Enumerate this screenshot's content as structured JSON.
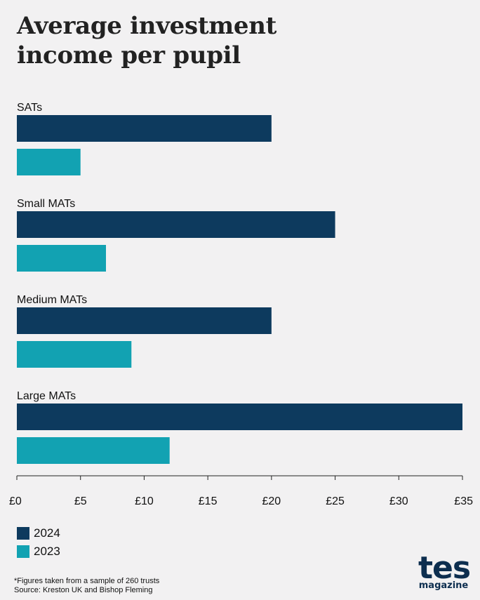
{
  "chart_data": {
    "type": "bar",
    "orientation": "horizontal",
    "title": "Average investment income per pupil",
    "title_lines": [
      "Average investment",
      "income per pupil"
    ],
    "categories": [
      "SATs",
      "Small MATs",
      "Medium MATs",
      "Large MATs"
    ],
    "series": [
      {
        "name": "2024",
        "values": [
          20,
          25,
          20,
          35
        ],
        "color": "#0d3a5e"
      },
      {
        "name": "2023",
        "values": [
          5,
          7,
          9,
          12
        ],
        "color": "#12a2b2"
      }
    ],
    "xlim": [
      0,
      35
    ],
    "ticks": [
      0,
      5,
      10,
      15,
      20,
      25,
      30,
      35
    ],
    "tick_labels": [
      "£0",
      "£5",
      "£10",
      "£15",
      "£20",
      "£25",
      "£30",
      "£35"
    ],
    "xlabel": "",
    "ylabel": "",
    "grid": false,
    "legend_position": "bottom-left"
  },
  "footnote": {
    "line1": "*Figures taken from a sample of 260 trusts",
    "line2": "Source: Kreston UK and Bishop Fleming"
  },
  "logo": {
    "main": "tes",
    "sub": "magazine",
    "color": "#0d2e4f"
  }
}
